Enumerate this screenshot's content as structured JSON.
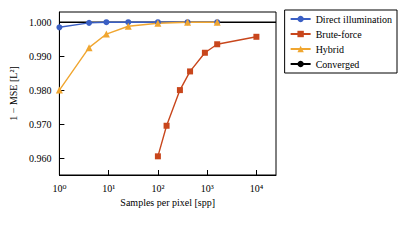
{
  "chart_data": {
    "type": "line",
    "x_label": "Samples per pixel [spp]",
    "y_label": "1 − MSE [L²]",
    "log": "x",
    "grid": false,
    "legend": "right",
    "xlim": [
      1,
      25000
    ],
    "ylim": [
      0.955,
      1.003
    ],
    "xticks": [
      {
        "value": 1,
        "label": "10⁰"
      },
      {
        "value": 10,
        "label": "10¹"
      },
      {
        "value": 100,
        "label": "10²"
      },
      {
        "value": 1000,
        "label": "10³"
      },
      {
        "value": 10000,
        "label": "10⁴"
      }
    ],
    "yticks": [
      {
        "value": 0.96,
        "label": "0.960"
      },
      {
        "value": 0.97,
        "label": "0.970"
      },
      {
        "value": 0.98,
        "label": "0.980"
      },
      {
        "value": 0.99,
        "label": "0.990"
      },
      {
        "value": 1.0,
        "label": "1.000"
      }
    ],
    "series": [
      {
        "name": "Direct illumination",
        "color": "#3a5fc4",
        "marker": "circle",
        "line_style": "solid",
        "x": [
          1,
          4,
          9,
          25,
          100,
          400,
          1600
        ],
        "values": [
          0.9985,
          0.9998,
          1.0,
          1.0,
          1.0,
          1.0,
          1.0
        ]
      },
      {
        "name": "Brute-force",
        "color": "#c8461c",
        "marker": "square",
        "line_style": "solid",
        "x": [
          100,
          150,
          280,
          450,
          900,
          1600,
          10000
        ],
        "values": [
          0.9605,
          0.9695,
          0.98,
          0.9855,
          0.991,
          0.9935,
          0.9957
        ]
      },
      {
        "name": "Hybrid",
        "color": "#f0a630",
        "marker": "triangle",
        "line_style": "solid",
        "x": [
          1,
          4,
          9,
          25,
          100,
          400,
          1600
        ],
        "values": [
          0.98,
          0.9925,
          0.9965,
          0.9988,
          0.9997,
          1.0,
          1.0
        ]
      },
      {
        "name": "Converged",
        "color": "#000000",
        "marker": "none",
        "line_style": "solid",
        "x": [
          1,
          25000
        ],
        "values": [
          1.0,
          1.0
        ]
      }
    ]
  }
}
